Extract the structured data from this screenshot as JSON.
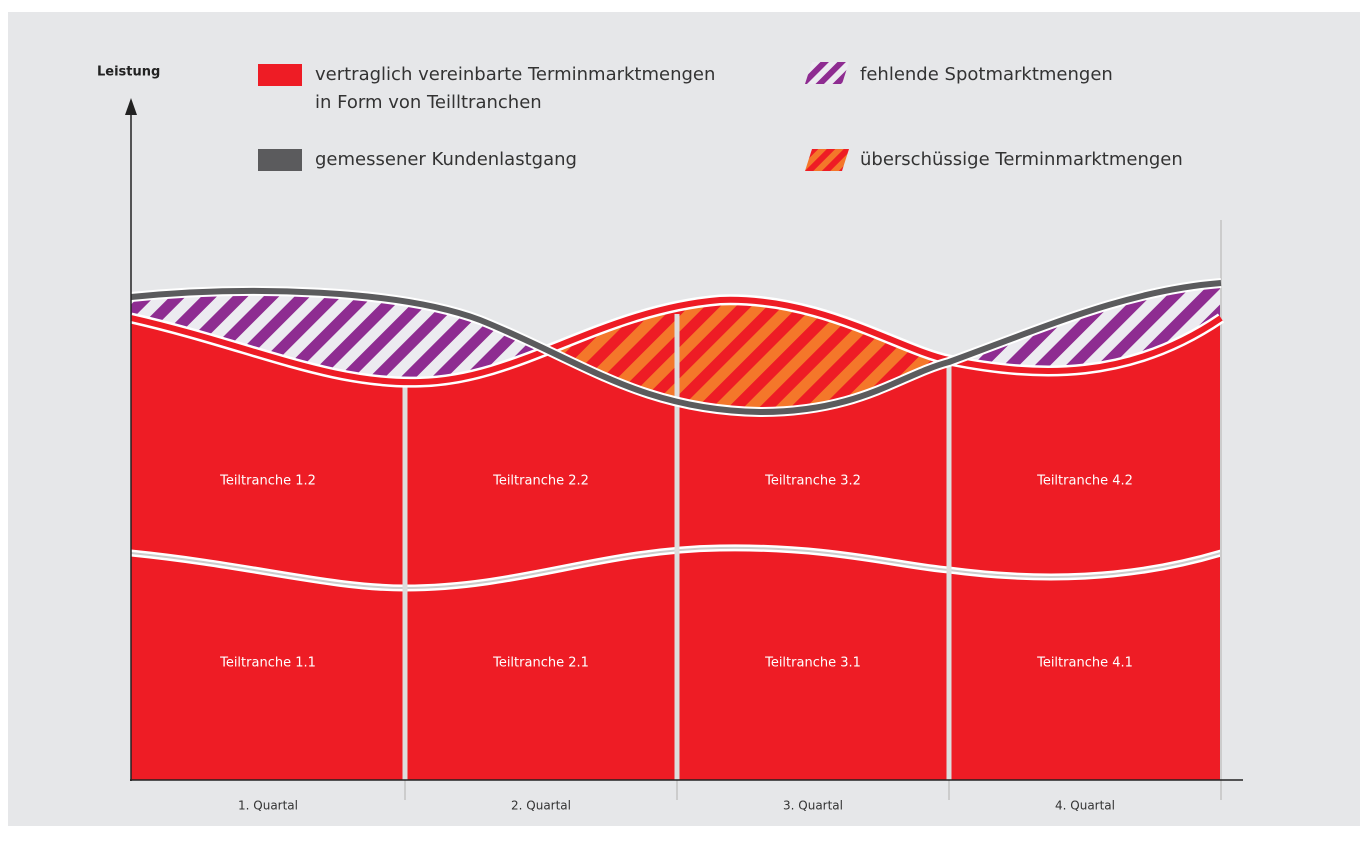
{
  "axis_label": "Leistung",
  "legend": [
    {
      "label": [
        "vertraglich vereinbarte Terminmarktmengen",
        "in Form von Teilltranchen"
      ]
    },
    {
      "label": [
        "fehlende Spotmarktmengen"
      ]
    },
    {
      "label": [
        "gemessener Kundenlastgang"
      ]
    },
    {
      "label": [
        "überschüssige Terminmarktmengen"
      ]
    }
  ],
  "quarters": [
    {
      "name": "1. Quartal",
      "tranches": [
        "Teiltranche 1.2",
        "Teiltranche 1.1"
      ]
    },
    {
      "name": "2. Quartal",
      "tranches": [
        "Teiltranche 2.2",
        "Teiltranche 2.1"
      ]
    },
    {
      "name": "3. Quartal",
      "tranches": [
        "Teiltranche 3.2",
        "Teiltranche 3.1"
      ]
    },
    {
      "name": "4. Quartal",
      "tranches": [
        "Teiltranche 4.2",
        "Teiltranche 4.1"
      ]
    }
  ]
}
